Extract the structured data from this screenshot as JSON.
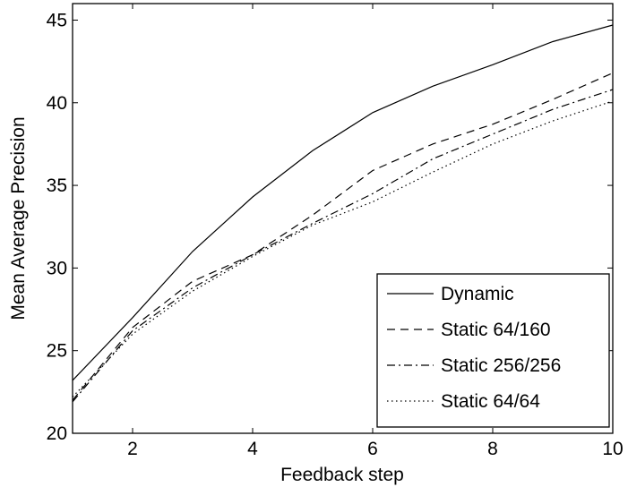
{
  "chart_data": {
    "type": "line",
    "title": "",
    "xlabel": "Feedback step",
    "ylabel": "Mean Average Precision",
    "xlim": [
      1,
      10
    ],
    "ylim": [
      20,
      46
    ],
    "xticks": [
      2,
      4,
      6,
      8,
      10
    ],
    "yticks": [
      20,
      25,
      30,
      35,
      40,
      45
    ],
    "grid": false,
    "legend_position": "bottom-right",
    "x": [
      1,
      2,
      3,
      4,
      5,
      6,
      7,
      8,
      9,
      10
    ],
    "series": [
      {
        "name": "Dynamic",
        "dash": "solid",
        "values": [
          23.2,
          27.0,
          31.0,
          34.3,
          37.1,
          39.4,
          41.0,
          42.3,
          43.7,
          44.7
        ]
      },
      {
        "name": "Static 64/160",
        "dash": "dashed",
        "values": [
          22.0,
          26.4,
          29.2,
          30.8,
          33.2,
          35.9,
          37.5,
          38.7,
          40.2,
          41.8
        ]
      },
      {
        "name": "Static 256/256",
        "dash": "dashdot",
        "values": [
          21.9,
          26.2,
          28.8,
          30.8,
          32.7,
          34.5,
          36.6,
          38.1,
          39.6,
          40.8
        ]
      },
      {
        "name": "Static 64/64",
        "dash": "dotted",
        "values": [
          22.2,
          26.0,
          28.6,
          30.7,
          32.6,
          34.0,
          35.8,
          37.5,
          38.9,
          40.1
        ]
      }
    ]
  }
}
